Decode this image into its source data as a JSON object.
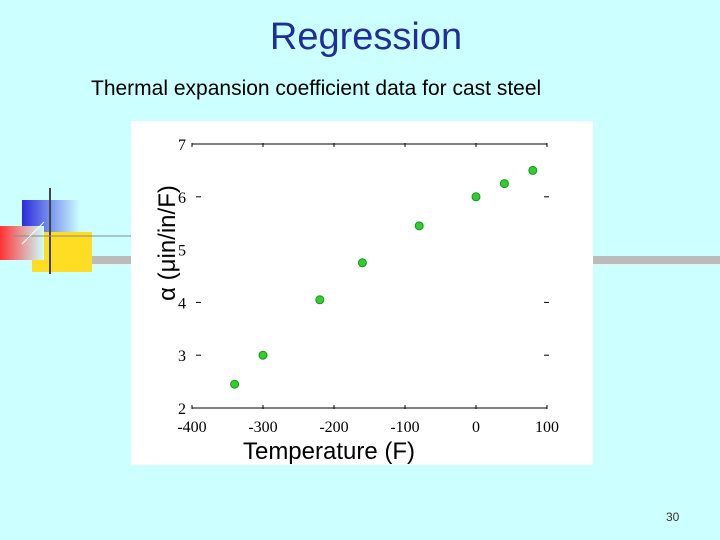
{
  "slide": {
    "title": "Regression",
    "subtitle": "Thermal expansion coefficient data for cast steel",
    "page_number": "30"
  },
  "colors": {
    "background": "#ccffff",
    "title": "#1f2f99",
    "point_fill": "#33cc33",
    "deco_blue": "#2b2bdd",
    "deco_yellow": "#ffdd22",
    "deco_red": "#ff3333"
  },
  "chart_data": {
    "type": "scatter",
    "title": "",
    "xlabel": "Temperature (F)",
    "ylabel": "α (μin/in/F)",
    "xlim": [
      -400,
      100
    ],
    "ylim": [
      2,
      7
    ],
    "xticks": [
      -400,
      -300,
      -200,
      -100,
      0,
      100
    ],
    "yticks": [
      2,
      3,
      4,
      5,
      6,
      7
    ],
    "grid": false,
    "x": [
      -340,
      -300,
      -220,
      -160,
      -80,
      0,
      40,
      80
    ],
    "y": [
      2.45,
      3.0,
      4.05,
      4.75,
      5.45,
      6.0,
      6.25,
      6.5
    ]
  }
}
